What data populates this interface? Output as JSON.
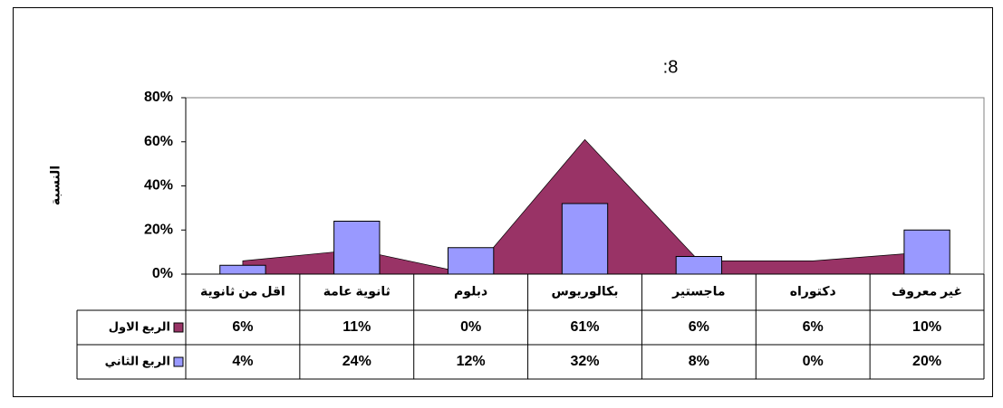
{
  "chart_data": {
    "type": "area-bar",
    "title": ":8",
    "y_label": "النسبة",
    "categories": [
      "اقل من ثانوية",
      "ثانوية عامة",
      "دبلوم",
      "بكالوريوس",
      "ماجستير",
      "دكتوراه",
      "غير معروف"
    ],
    "series": [
      {
        "name": "الربع الاول",
        "type": "area",
        "color": "#993366",
        "values": [
          6,
          11,
          0,
          61,
          6,
          6,
          10
        ],
        "value_labels": [
          "6%",
          "11%",
          "0%",
          "61%",
          "6%",
          "6%",
          "10%"
        ]
      },
      {
        "name": "الربع الثاني",
        "type": "bar",
        "color": "#9999ff",
        "values": [
          4,
          24,
          12,
          32,
          8,
          0,
          20
        ],
        "value_labels": [
          "4%",
          "24%",
          "12%",
          "32%",
          "8%",
          "0%",
          "20%"
        ]
      }
    ],
    "ylim": [
      0,
      80
    ],
    "yticks": [
      {
        "value": 0,
        "label": "0%"
      },
      {
        "value": 20,
        "label": "20%"
      },
      {
        "value": 40,
        "label": "40%"
      },
      {
        "value": 60,
        "label": "60%"
      },
      {
        "value": 80,
        "label": "80%"
      }
    ],
    "grid": false
  }
}
